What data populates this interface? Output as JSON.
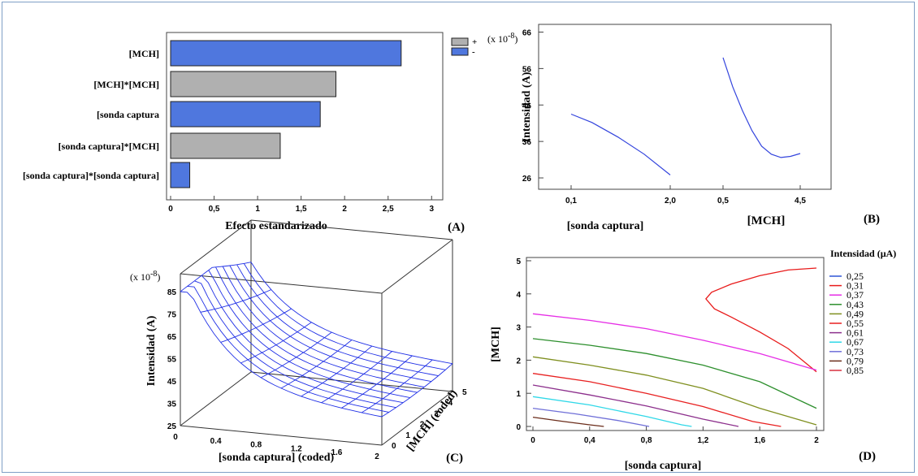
{
  "panels": {
    "A": "(A)",
    "B": "(B)",
    "C": "(C)",
    "D": "(D)"
  },
  "chart_data": [
    {
      "type": "bar",
      "orientation": "horizontal",
      "panel": "A",
      "categories": [
        "[MCH]",
        "[MCH]*[MCH]",
        "[sonda captura",
        "[sonda captura]*[MCH]",
        "[sonda captura]*[sonda captura]"
      ],
      "values": [
        2.65,
        1.9,
        1.72,
        1.26,
        0.22
      ],
      "signs": [
        "-",
        "+",
        "-",
        "+",
        "-"
      ],
      "xlabel": "Efecto estandarizado",
      "xlim": [
        0,
        3.1
      ],
      "xticks": [
        "0",
        "0,5",
        "1",
        "1,5",
        "2",
        "2,5",
        "3"
      ],
      "legend": [
        {
          "label": "+",
          "color": "#b0b0b0"
        },
        {
          "label": "-",
          "color": "#4f77de"
        }
      ],
      "legend_position": "top-right"
    },
    {
      "type": "line",
      "panel": "B",
      "scale_label": "(x 10",
      "scale_exp": "-8",
      "scale_close": ")",
      "ylabel": "Intensidad  (A)",
      "ylim": [
        24,
        67
      ],
      "yticks": [
        "26",
        "36",
        "46",
        "56",
        "66"
      ],
      "segments": [
        {
          "name": "[sonda captura]",
          "x_labels": [
            "0,1",
            "2,0"
          ],
          "points": [
            [
              0.1,
              43.5
            ],
            [
              0.5,
              41.2
            ],
            [
              1.0,
              37.2
            ],
            [
              1.5,
              32.5
            ],
            [
              2.0,
              26.8
            ]
          ]
        },
        {
          "name": "[MCH]",
          "x_labels": [
            "0,5",
            "4,5"
          ],
          "points": [
            [
              0.5,
              59.0
            ],
            [
              1.0,
              51.0
            ],
            [
              1.5,
              44.5
            ],
            [
              2.0,
              39.0
            ],
            [
              2.5,
              34.7
            ],
            [
              3.0,
              32.5
            ],
            [
              3.5,
              31.6
            ],
            [
              4.0,
              31.9
            ],
            [
              4.5,
              32.7
            ]
          ]
        }
      ],
      "line_color": "#3344dd"
    },
    {
      "type": "surface",
      "panel": "C",
      "scale_label": "(x 10",
      "scale_exp": "-8",
      "scale_close": ")",
      "xlabel": "[sonda captura] (coded)",
      "ylabel": "[MCH] (coded)",
      "zlabel": "Intensidad  (A)",
      "xticks": [
        "0",
        "0.4",
        "0.8",
        "1.2",
        "1.6",
        "2"
      ],
      "yticks": [
        "0",
        "1",
        "2",
        "3",
        "4",
        "5"
      ],
      "zticks": [
        "25",
        "35",
        "45",
        "55",
        "65",
        "75",
        "85"
      ],
      "xlim": [
        0,
        2
      ],
      "ylim": [
        0,
        5
      ],
      "zlim": [
        25,
        85
      ],
      "color": "#1f2fe6"
    },
    {
      "type": "contour",
      "panel": "D",
      "xlabel": "[sonda captura]",
      "ylabel": "[MCH]",
      "xticks": [
        "0",
        "0,4",
        "0,8",
        "1,2",
        "1,6",
        "2"
      ],
      "yticks": [
        "0",
        "1",
        "2",
        "3",
        "4",
        "5"
      ],
      "xlim": [
        0,
        2
      ],
      "ylim": [
        0,
        5
      ],
      "legend_title": "Intensidad (µA)",
      "levels": [
        {
          "label": "0,25",
          "color": "#2f55d6"
        },
        {
          "label": "0,31",
          "color": "#e81b1b"
        },
        {
          "label": "0,37",
          "color": "#e62ee6"
        },
        {
          "label": "0,43",
          "color": "#2d8f2d"
        },
        {
          "label": "0,49",
          "color": "#7f8f1f"
        },
        {
          "label": "0,55",
          "color": "#e82020"
        },
        {
          "label": "0,61",
          "color": "#8c2f8c"
        },
        {
          "label": "0,67",
          "color": "#30d8e8"
        },
        {
          "label": "0,73",
          "color": "#7070d8"
        },
        {
          "label": "0,79",
          "color": "#6b2d1b"
        },
        {
          "label": "0,85",
          "color": "#d8303f"
        }
      ],
      "contours": [
        {
          "color": "#e81b1b",
          "points": [
            [
              2.0,
              4.78
            ],
            [
              1.8,
              4.72
            ],
            [
              1.6,
              4.55
            ],
            [
              1.4,
              4.3
            ],
            [
              1.26,
              4.05
            ],
            [
              1.22,
              3.85
            ],
            [
              1.28,
              3.55
            ],
            [
              1.4,
              3.3
            ],
            [
              1.6,
              2.85
            ],
            [
              1.8,
              2.35
            ],
            [
              2.0,
              1.65
            ]
          ]
        },
        {
          "color": "#e62ee6",
          "points": [
            [
              0.0,
              3.4
            ],
            [
              0.4,
              3.2
            ],
            [
              0.8,
              2.95
            ],
            [
              1.2,
              2.6
            ],
            [
              1.6,
              2.2
            ],
            [
              2.0,
              1.7
            ]
          ]
        },
        {
          "color": "#2d8f2d",
          "points": [
            [
              0.0,
              2.65
            ],
            [
              0.4,
              2.45
            ],
            [
              0.8,
              2.2
            ],
            [
              1.2,
              1.85
            ],
            [
              1.6,
              1.35
            ],
            [
              2.0,
              0.55
            ]
          ]
        },
        {
          "color": "#7f8f1f",
          "points": [
            [
              0.0,
              2.1
            ],
            [
              0.4,
              1.85
            ],
            [
              0.8,
              1.55
            ],
            [
              1.2,
              1.15
            ],
            [
              1.6,
              0.55
            ],
            [
              2.0,
              0.05
            ]
          ]
        },
        {
          "color": "#e82020",
          "points": [
            [
              0.0,
              1.6
            ],
            [
              0.4,
              1.35
            ],
            [
              0.8,
              1.0
            ],
            [
              1.2,
              0.6
            ],
            [
              1.55,
              0.15
            ],
            [
              1.75,
              0.0
            ]
          ]
        },
        {
          "color": "#8c2f8c",
          "points": [
            [
              0.0,
              1.25
            ],
            [
              0.4,
              0.95
            ],
            [
              0.8,
              0.62
            ],
            [
              1.2,
              0.22
            ],
            [
              1.45,
              0.0
            ]
          ]
        },
        {
          "color": "#30d8e8",
          "points": [
            [
              0.0,
              0.9
            ],
            [
              0.4,
              0.65
            ],
            [
              0.8,
              0.3
            ],
            [
              1.05,
              0.05
            ],
            [
              1.12,
              0.0
            ]
          ]
        },
        {
          "color": "#7070d8",
          "points": [
            [
              0.0,
              0.55
            ],
            [
              0.3,
              0.38
            ],
            [
              0.6,
              0.18
            ],
            [
              0.82,
              0.0
            ]
          ]
        },
        {
          "color": "#6b2d1b",
          "points": [
            [
              0.0,
              0.28
            ],
            [
              0.2,
              0.16
            ],
            [
              0.4,
              0.05
            ],
            [
              0.5,
              0.0
            ]
          ]
        }
      ]
    }
  ]
}
